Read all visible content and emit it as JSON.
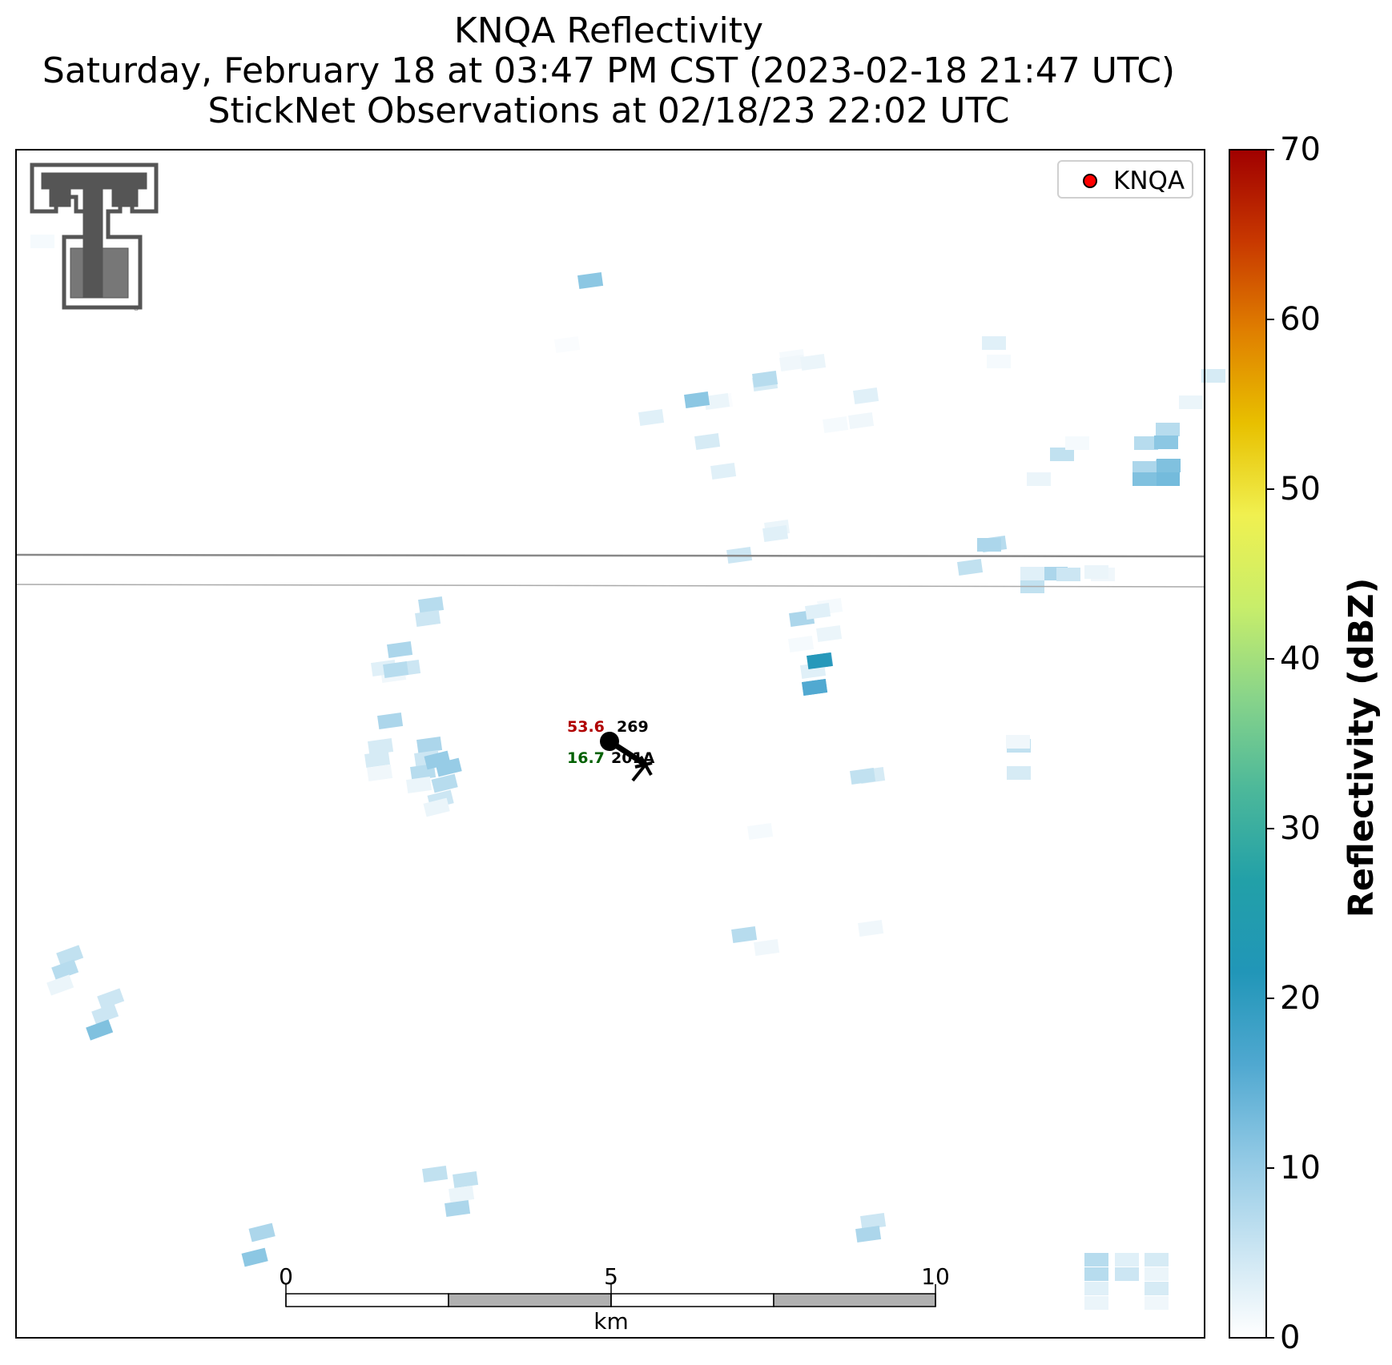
{
  "titles": {
    "line1": "KNQA Reflectivity",
    "line2": "Saturday, February 18 at 03:47 PM CST (2023-02-18 21:47 UTC)",
    "line3": "StickNet Observations at 02/18/23 22:02 UTC"
  },
  "legend": {
    "label": "KNQA",
    "marker_color": "#ff0000"
  },
  "colorbar": {
    "label": "Reflectivity (dBZ)",
    "ticks": [
      "0",
      "10",
      "20",
      "30",
      "40",
      "50",
      "60",
      "70"
    ],
    "range": [
      0,
      70
    ],
    "colors": [
      "#ffffff",
      "#c8e4f2",
      "#8fc8e4",
      "#4fa8d0",
      "#2196b8",
      "#22a0a8",
      "#4cb89a",
      "#88d48a",
      "#c8ee6a",
      "#f0f050",
      "#e8c000",
      "#e08000",
      "#c83800",
      "#a00000"
    ]
  },
  "scalebar": {
    "ticks": [
      "0",
      "5",
      "10"
    ],
    "unit": "km"
  },
  "station_obs": {
    "temperature": "53.6",
    "wind_direction": "269",
    "dewpoint": "16.7",
    "station_id": "201A"
  },
  "reflectivity_gates": [
    {
      "dbz": 1
    },
    {
      "dbz": 11
    },
    {
      "dbz": 0.5
    },
    {
      "dbz": 1
    },
    {
      "dbz": 1.5
    },
    {
      "dbz": 4
    },
    {
      "dbz": 2
    },
    {
      "dbz": 0.5
    },
    {
      "dbz": 3
    },
    {
      "dbz": 3
    },
    {
      "dbz": 4
    },
    {
      "dbz": 2
    },
    {
      "dbz": 1.5
    },
    {
      "dbz": 1
    },
    {
      "dbz": 3
    },
    {
      "dbz": 6
    },
    {
      "dbz": 2
    },
    {
      "dbz": 7
    },
    {
      "dbz": 6
    },
    {
      "dbz": 8
    },
    {
      "dbz": 4
    },
    {
      "dbz": 7
    },
    {
      "dbz": 2
    },
    {
      "dbz": 3
    },
    {
      "dbz": 1.5
    },
    {
      "dbz": 2
    },
    {
      "dbz": 7
    },
    {
      "dbz": 6
    },
    {
      "dbz": 7
    },
    {
      "dbz": 8
    },
    {
      "dbz": 6
    },
    {
      "dbz": 3
    },
    {
      "dbz": 17
    },
    {
      "dbz": 14
    },
    {
      "dbz": 12
    },
    {
      "dbz": 13
    },
    {
      "dbz": 12
    },
    {
      "dbz": 7
    },
    {
      "dbz": 5
    },
    {
      "dbz": 5
    },
    {
      "dbz": 3
    },
    {
      "dbz": 21
    },
    {
      "dbz": 16
    },
    {
      "dbz": 1
    },
    {
      "dbz": 8
    },
    {
      "dbz": 4
    },
    {
      "dbz": 4
    },
    {
      "dbz": 1.5
    },
    {
      "dbz": 8
    },
    {
      "dbz": 5
    },
    {
      "dbz": 7
    },
    {
      "dbz": 2
    },
    {
      "dbz": 10
    },
    {
      "dbz": 7
    },
    {
      "dbz": 5
    },
    {
      "dbz": 2
    },
    {
      "dbz": 6
    },
    {
      "dbz": 4
    },
    {
      "dbz": 4
    },
    {
      "dbz": 1.5
    },
    {
      "dbz": 7
    },
    {
      "dbz": 1.5
    },
    {
      "dbz": 5
    },
    {
      "dbz": 8
    },
    {
      "dbz": 6
    },
    {
      "dbz": 7
    },
    {
      "dbz": 2
    },
    {
      "dbz": 5
    },
    {
      "dbz": 5
    },
    {
      "dbz": 12
    },
    {
      "dbz": 8
    },
    {
      "dbz": 11
    },
    {
      "dbz": 6
    },
    {
      "dbz": 6
    },
    {
      "dbz": 2
    },
    {
      "dbz": 8
    },
    {
      "dbz": 7
    },
    {
      "dbz": 7
    },
    {
      "dbz": 3
    },
    {
      "dbz": 3
    },
    {
      "dbz": 5
    },
    {
      "dbz": 4
    },
    {
      "dbz": 2
    },
    {
      "dbz": 4
    },
    {
      "dbz": 1.5
    },
    {
      "dbz": 2
    },
    {
      "dbz": 7
    },
    {
      "dbz": 11
    },
    {
      "dbz": 3
    },
    {
      "dbz": 5
    },
    {
      "dbz": 8
    },
    {
      "dbz": 1
    },
    {
      "dbz": 2
    },
    {
      "dbz": 3
    },
    {
      "dbz": 6
    },
    {
      "dbz": 1
    },
    {
      "dbz": 1
    },
    {
      "dbz": 1
    },
    {
      "dbz": 2
    },
    {
      "dbz": 5
    },
    {
      "dbz": 11
    },
    {
      "dbz": 8
    },
    {
      "dbz": 1.5
    },
    {
      "dbz": 3
    },
    {
      "dbz": 8
    },
    {
      "dbz": 7
    },
    {
      "dbz": 10
    },
    {
      "dbz": 1.5
    }
  ]
}
